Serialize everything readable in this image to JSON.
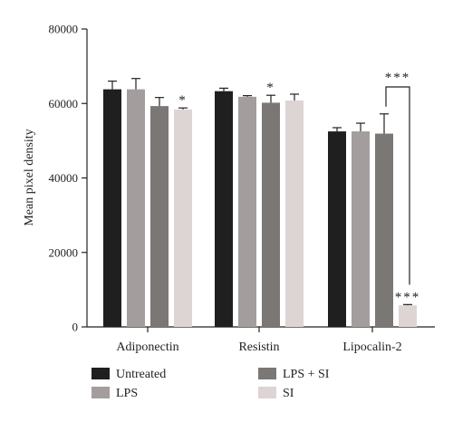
{
  "chart_data": {
    "type": "bar",
    "ylabel": "Mean pixel density",
    "xlabel": "",
    "ylim": [
      0,
      80000
    ],
    "yticks": [
      "0",
      "20000",
      "40000",
      "60000",
      "80000"
    ],
    "categories": [
      "Adiponectin",
      "Resistin",
      "Lipocalin-2"
    ],
    "series": [
      {
        "name": "Untreated",
        "color": "#1f1f1f",
        "values": [
          63800,
          63300,
          52500
        ],
        "errors": [
          2200,
          800,
          1000
        ]
      },
      {
        "name": "LPS",
        "color": "#a39d9e",
        "values": [
          63800,
          61800,
          52500
        ],
        "errors": [
          2900,
          300,
          2200
        ]
      },
      {
        "name": "LPS + SI",
        "color": "#7b7775",
        "values": [
          59300,
          60200,
          51900
        ],
        "errors": [
          2300,
          2000,
          5300
        ]
      },
      {
        "name": "SI",
        "color": "#ddd5d3",
        "values": [
          58400,
          60800,
          5800
        ],
        "errors": [
          400,
          1700,
          200
        ]
      }
    ],
    "annotations": [
      {
        "text": "*",
        "category": "Adiponectin",
        "series": "SI"
      },
      {
        "text": "*",
        "category": "Resistin",
        "series": "LPS + SI"
      },
      {
        "text": "***",
        "category": "Lipocalin-2",
        "series": "SI"
      }
    ],
    "bracket": {
      "from_series": "LPS + SI",
      "to_series": "SI",
      "category": "Lipocalin-2",
      "text": "***"
    },
    "legend": {
      "placement": "bottom"
    }
  }
}
